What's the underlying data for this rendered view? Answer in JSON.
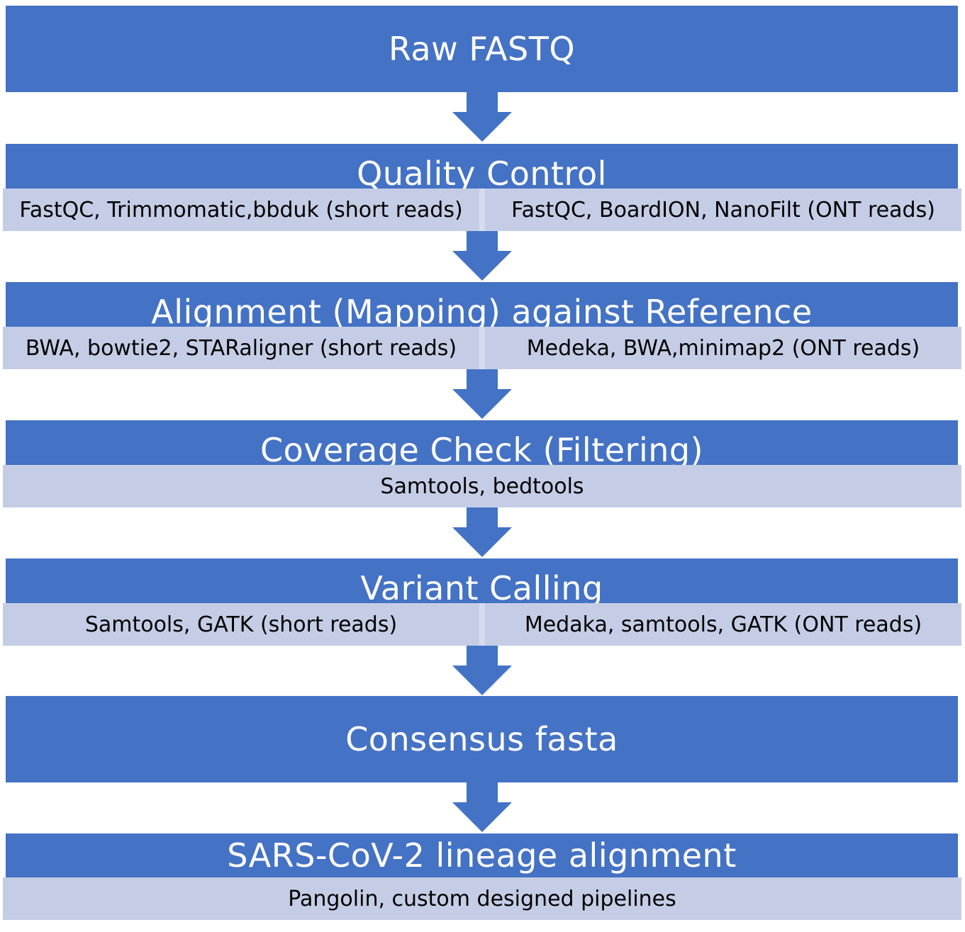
{
  "colors": {
    "primary": "#4472c4",
    "secondary": "#c5cde6",
    "text_on_primary": "#ffffff"
  },
  "steps": [
    {
      "title": "Raw FASTQ",
      "tools": []
    },
    {
      "title": "Quality Control",
      "tools": [
        "FastQC, Trimmomatic,bbduk (short reads)",
        "FastQC, BoardION, NanoFilt (ONT reads)"
      ]
    },
    {
      "title": "Alignment (Mapping) against Reference",
      "tools": [
        "BWA, bowtie2, STARaligner (short reads)",
        "Medeka, BWA,minimap2 (ONT reads)"
      ]
    },
    {
      "title": "Coverage Check (Filtering)",
      "tools": [
        "Samtools, bedtools"
      ]
    },
    {
      "title": "Variant Calling",
      "tools": [
        "Samtools, GATK (short reads)",
        "Medaka, samtools, GATK (ONT reads)"
      ]
    },
    {
      "title": "Consensus fasta",
      "tools": []
    },
    {
      "title": "SARS-CoV-2 lineage alignment",
      "tools": [
        "Pangolin, custom designed pipelines"
      ]
    }
  ]
}
